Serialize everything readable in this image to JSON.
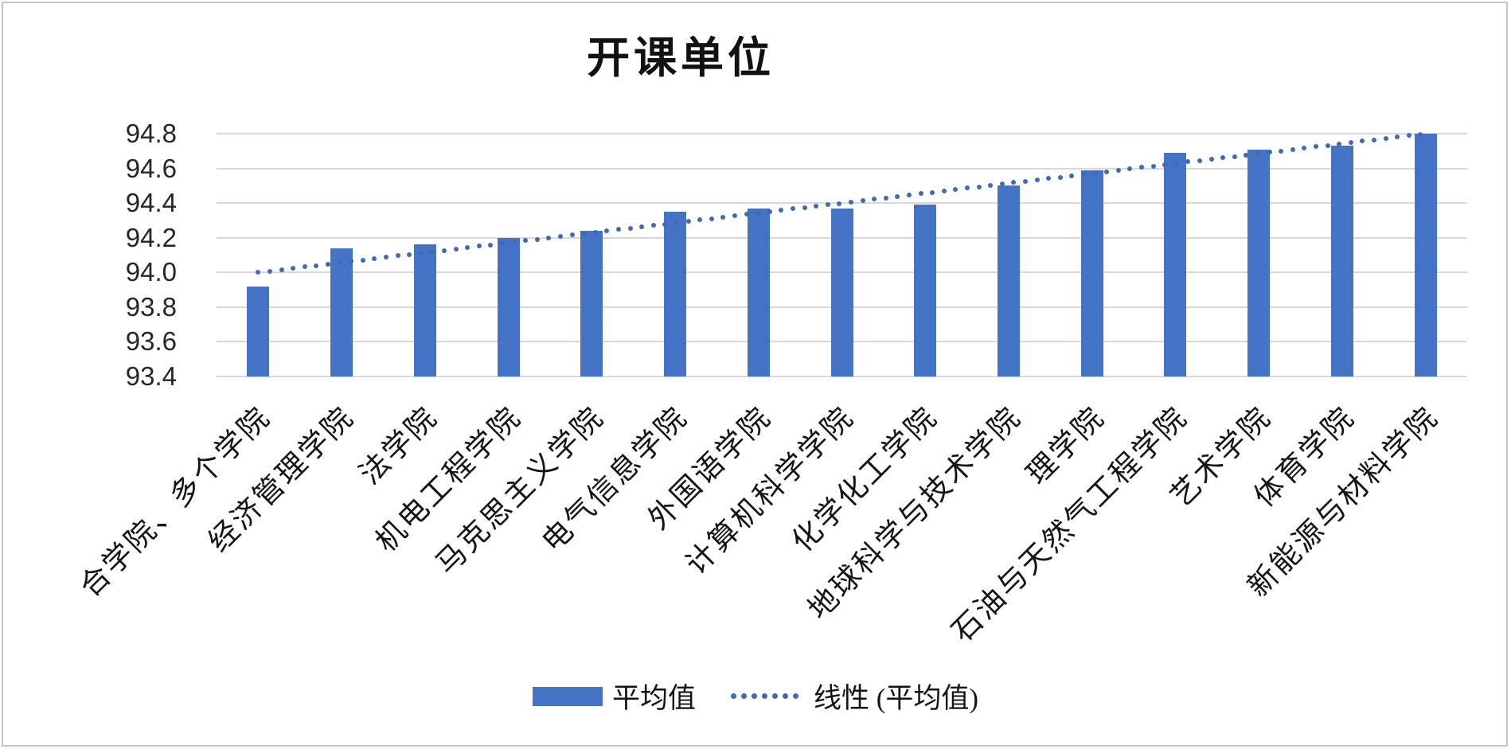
{
  "chart_data": {
    "type": "bar",
    "title": "开课单位",
    "categories": [
      "合学院、多个学院",
      "经济管理学院",
      "法学院",
      "机电工程学院",
      "马克思主义学院",
      "电气信息学院",
      "外国语学院",
      "计算机科学学院",
      "化学化工学院",
      "地球科学与技术学院",
      "理学院",
      "石油与天然气工程学院",
      "艺术学院",
      "体育学院",
      "新能源与材料学院"
    ],
    "series": [
      {
        "name": "平均值",
        "values": [
          93.92,
          94.14,
          94.16,
          94.2,
          94.24,
          94.35,
          94.37,
          94.37,
          94.39,
          94.5,
          94.59,
          94.69,
          94.71,
          94.73,
          94.8
        ]
      }
    ],
    "trendline": {
      "name": "线性 (平均值)",
      "type": "linear",
      "start_value": 94.0,
      "end_value": 94.8
    },
    "xlabel": "",
    "ylabel": "",
    "ylim": [
      93.4,
      94.8
    ],
    "yticks": [
      93.4,
      93.6,
      93.8,
      94.0,
      94.2,
      94.4,
      94.6,
      94.8
    ],
    "grid": true,
    "legend_position": "bottom",
    "colors": {
      "bar": "#4472C4",
      "trend": "#4169B4",
      "gridline": "#D9D9D9",
      "text": "#141414",
      "frame": "#C6C6C6"
    }
  }
}
